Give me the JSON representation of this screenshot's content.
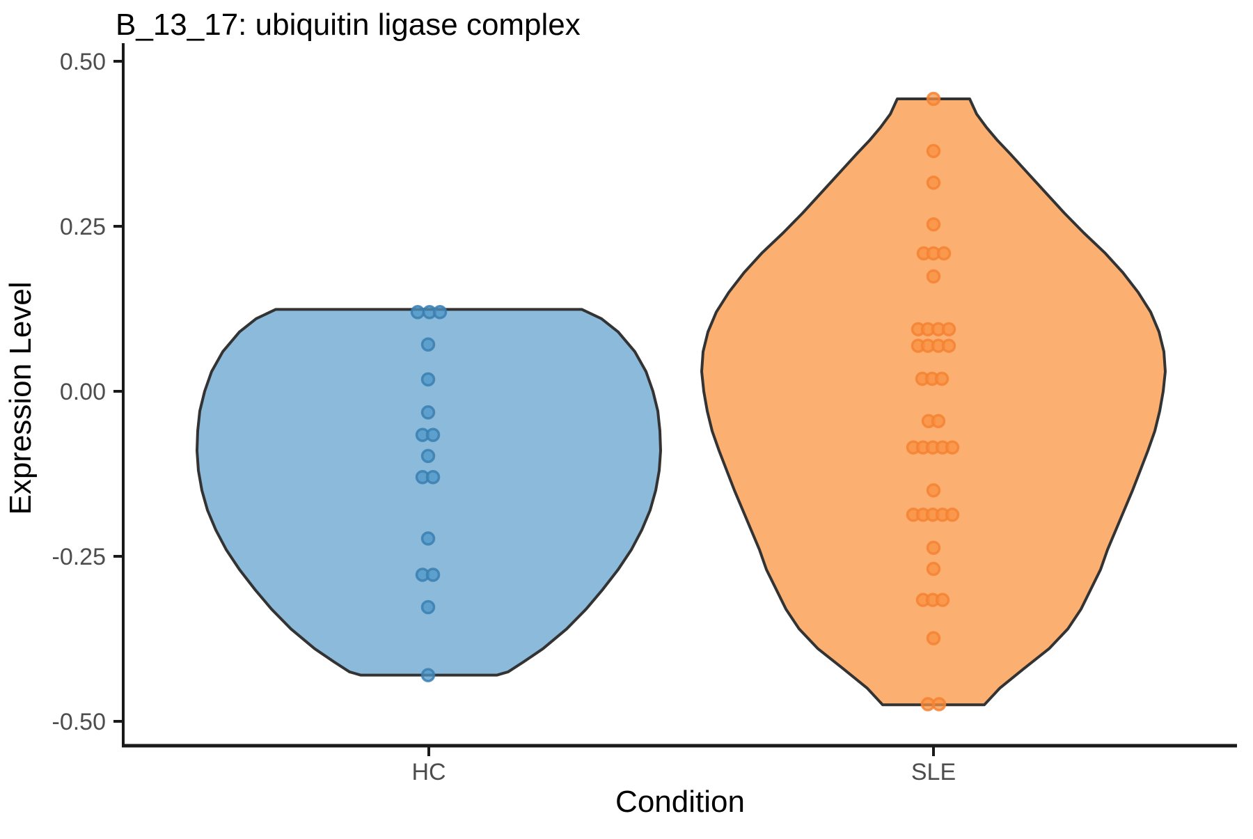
{
  "chart_data": {
    "type": "violin",
    "title": "B_13_17: ubiquitin ligase complex",
    "xlabel": "Condition",
    "ylabel": "Expression Level",
    "categories": [
      "HC",
      "SLE"
    ],
    "ylim": [
      -0.55,
      0.52
    ],
    "y_ticks": [
      {
        "value": 0.5,
        "label": "0.50"
      },
      {
        "value": 0.25,
        "label": "0.25"
      },
      {
        "value": 0.0,
        "label": "0.00"
      },
      {
        "value": -0.25,
        "label": "-0.25"
      },
      {
        "value": -0.5,
        "label": "-0.50"
      }
    ],
    "grid": "off",
    "legend": "none",
    "outline_color": "#333333",
    "axis_color": "#1a1a1a",
    "tick_label_color": "#4d4d4d",
    "series": [
      {
        "name": "HC",
        "fill": "#8cbadb",
        "point_fill": "#4e96c8",
        "point_stroke": "#3a7fb0",
        "violin_profile": [
          {
            "v": 0.124,
            "hw": 220
          },
          {
            "v": 0.11,
            "hw": 248
          },
          {
            "v": 0.09,
            "hw": 272
          },
          {
            "v": 0.06,
            "hw": 296
          },
          {
            "v": 0.03,
            "hw": 312
          },
          {
            "v": 0.0,
            "hw": 322
          },
          {
            "v": -0.03,
            "hw": 329
          },
          {
            "v": -0.06,
            "hw": 332
          },
          {
            "v": -0.09,
            "hw": 333
          },
          {
            "v": -0.12,
            "hw": 331
          },
          {
            "v": -0.15,
            "hw": 326
          },
          {
            "v": -0.18,
            "hw": 318
          },
          {
            "v": -0.21,
            "hw": 306
          },
          {
            "v": -0.24,
            "hw": 291
          },
          {
            "v": -0.27,
            "hw": 272
          },
          {
            "v": -0.3,
            "hw": 250
          },
          {
            "v": -0.33,
            "hw": 226
          },
          {
            "v": -0.36,
            "hw": 198
          },
          {
            "v": -0.39,
            "hw": 164
          },
          {
            "v": -0.41,
            "hw": 136
          },
          {
            "v": -0.425,
            "hw": 114
          },
          {
            "v": -0.43,
            "hw": 98
          }
        ],
        "points": [
          {
            "v": 0.12,
            "dx": [
              -16,
              1,
              16
            ]
          },
          {
            "v": 0.071,
            "dx": [
              -1
            ]
          },
          {
            "v": 0.018,
            "dx": [
              -1
            ]
          },
          {
            "v": -0.032,
            "dx": [
              -1
            ]
          },
          {
            "v": -0.066,
            "dx": [
              -9,
              6
            ]
          },
          {
            "v": -0.098,
            "dx": [
              -1
            ]
          },
          {
            "v": -0.13,
            "dx": [
              -9,
              6
            ]
          },
          {
            "v": -0.223,
            "dx": [
              -1
            ]
          },
          {
            "v": -0.278,
            "dx": [
              -9,
              6
            ]
          },
          {
            "v": -0.327,
            "dx": [
              -1
            ]
          },
          {
            "v": -0.43,
            "dx": [
              -1
            ]
          }
        ]
      },
      {
        "name": "SLE",
        "fill": "#fbb072",
        "point_fill": "#fa9143",
        "point_stroke": "#f58233",
        "violin_profile": [
          {
            "v": 0.443,
            "hw": 52
          },
          {
            "v": 0.42,
            "hw": 62
          },
          {
            "v": 0.4,
            "hw": 76
          },
          {
            "v": 0.38,
            "hw": 92
          },
          {
            "v": 0.36,
            "hw": 110
          },
          {
            "v": 0.33,
            "hw": 136
          },
          {
            "v": 0.3,
            "hw": 162
          },
          {
            "v": 0.27,
            "hw": 188
          },
          {
            "v": 0.24,
            "hw": 216
          },
          {
            "v": 0.21,
            "hw": 246
          },
          {
            "v": 0.18,
            "hw": 272
          },
          {
            "v": 0.15,
            "hw": 294
          },
          {
            "v": 0.12,
            "hw": 312
          },
          {
            "v": 0.09,
            "hw": 324
          },
          {
            "v": 0.06,
            "hw": 331
          },
          {
            "v": 0.03,
            "hw": 333
          },
          {
            "v": 0.0,
            "hw": 330
          },
          {
            "v": -0.03,
            "hw": 325
          },
          {
            "v": -0.06,
            "hw": 318
          },
          {
            "v": -0.09,
            "hw": 308
          },
          {
            "v": -0.12,
            "hw": 297
          },
          {
            "v": -0.15,
            "hw": 286
          },
          {
            "v": -0.18,
            "hw": 274
          },
          {
            "v": -0.21,
            "hw": 262
          },
          {
            "v": -0.24,
            "hw": 250
          },
          {
            "v": -0.27,
            "hw": 240
          },
          {
            "v": -0.3,
            "hw": 226
          },
          {
            "v": -0.33,
            "hw": 212
          },
          {
            "v": -0.36,
            "hw": 193
          },
          {
            "v": -0.39,
            "hw": 166
          },
          {
            "v": -0.42,
            "hw": 130
          },
          {
            "v": -0.45,
            "hw": 95
          },
          {
            "v": -0.475,
            "hw": 73
          }
        ],
        "points": [
          {
            "v": 0.443,
            "dx": [
              0
            ]
          },
          {
            "v": 0.364,
            "dx": [
              0
            ]
          },
          {
            "v": 0.316,
            "dx": [
              0
            ]
          },
          {
            "v": 0.253,
            "dx": [
              0
            ]
          },
          {
            "v": 0.209,
            "dx": [
              -14,
              0,
              15
            ]
          },
          {
            "v": 0.174,
            "dx": [
              0
            ]
          },
          {
            "v": 0.094,
            "dx": [
              -22,
              -8,
              7,
              22
            ]
          },
          {
            "v": 0.069,
            "dx": [
              -22,
              -8,
              7,
              22
            ]
          },
          {
            "v": 0.019,
            "dx": [
              -16,
              -2,
              12
            ]
          },
          {
            "v": -0.045,
            "dx": [
              -7,
              7
            ]
          },
          {
            "v": -0.085,
            "dx": [
              -29,
              -15,
              -1,
              13,
              27
            ]
          },
          {
            "v": -0.15,
            "dx": [
              0
            ]
          },
          {
            "v": -0.187,
            "dx": [
              -29,
              -15,
              -1,
              13,
              27
            ]
          },
          {
            "v": -0.237,
            "dx": [
              0
            ]
          },
          {
            "v": -0.269,
            "dx": [
              0
            ]
          },
          {
            "v": -0.316,
            "dx": [
              -15,
              -1,
              13
            ]
          },
          {
            "v": -0.374,
            "dx": [
              0
            ]
          },
          {
            "v": -0.474,
            "dx": [
              -8,
              8
            ]
          }
        ]
      }
    ]
  }
}
